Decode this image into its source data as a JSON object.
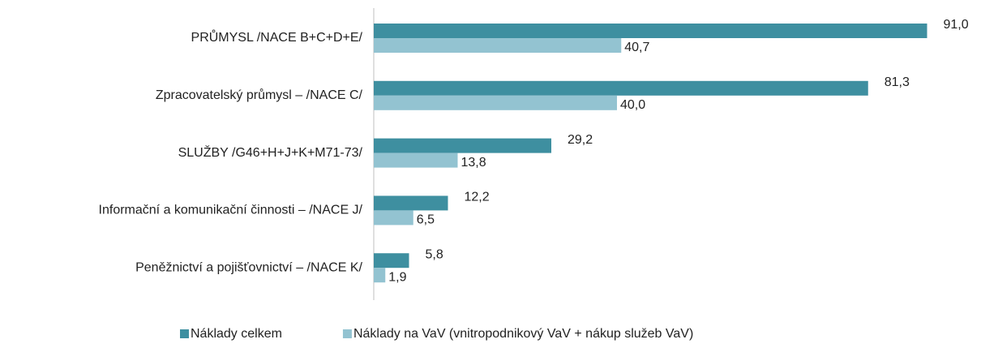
{
  "chart_data": {
    "type": "bar",
    "orientation": "horizontal",
    "categories": [
      "PRŮMYSL  /NACE B+C+D+E/",
      "Zpracovatelský průmysl – /NACE C/",
      "SLUŽBY /G46+H+J+K+M71-73/",
      "Informační a komunikační činnosti – /NACE J/",
      "Peněžnictví a pojišťovnictví – /NACE K/"
    ],
    "series": [
      {
        "name": "Náklady celkem",
        "color": "#3e8fa0",
        "values": [
          91.0,
          81.3,
          29.2,
          12.2,
          5.8
        ],
        "value_labels": [
          "91,0",
          "81,3",
          "29,2",
          "12,2",
          "5,8"
        ]
      },
      {
        "name": "Náklady na VaV (vnitropodnikový VaV + nákup služeb VaV)",
        "color": "#93c3d1",
        "values": [
          40.7,
          40.0,
          13.8,
          6.5,
          1.9
        ],
        "value_labels": [
          "40,7",
          "40,0",
          "13,8",
          "6,5",
          "1,9"
        ]
      }
    ],
    "xlim": [
      0,
      100
    ],
    "legend": "bottom"
  }
}
